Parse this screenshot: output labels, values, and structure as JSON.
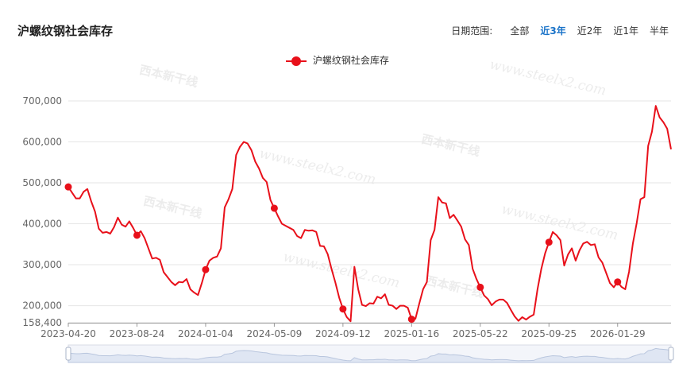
{
  "header": {
    "title": "沪螺纹钢社会库存",
    "range_label": "日期范围:",
    "range_options": [
      "全部",
      "近3年",
      "近2年",
      "近1年",
      "半年"
    ],
    "range_selected": "近3年"
  },
  "watermark": {
    "url": "www.steelx2.com",
    "brand": "西本新干线"
  },
  "colors": {
    "series": "#e8101a",
    "active_option": "#1a73c8",
    "grid": "#e6e6e6"
  },
  "chart_data": {
    "type": "line",
    "title": "",
    "xlabel": "",
    "ylabel": "",
    "legend": {
      "position": "top-center"
    },
    "ylim": [
      158400,
      700000
    ],
    "y_ticks": [
      158400,
      200000,
      300000,
      400000,
      500000,
      600000,
      700000
    ],
    "y_tick_labels": [
      "158,400",
      "200,000",
      "300,000",
      "400,000",
      "500,000",
      "600,000",
      "700,000"
    ],
    "x_tick_labels": [
      "2023-04-20",
      "2023-08-24",
      "2024-01-04",
      "2024-05-09",
      "2024-09-12",
      "2025-01-16",
      "2025-05-22",
      "2025-09-25",
      "2026-01-29"
    ],
    "grid": true,
    "series": [
      {
        "name": "沪螺纹钢社会库存",
        "marker_every": 18,
        "values": [
          490000,
          476000,
          462000,
          462000,
          478000,
          485000,
          455000,
          430000,
          388000,
          378000,
          380000,
          376000,
          392000,
          415000,
          398000,
          393000,
          406000,
          390000,
          372000,
          382000,
          365000,
          340000,
          315000,
          317000,
          312000,
          282000,
          270000,
          258000,
          250000,
          258000,
          257000,
          265000,
          240000,
          232000,
          226000,
          255000,
          288000,
          310000,
          317000,
          320000,
          340000,
          440000,
          460000,
          485000,
          568000,
          588000,
          600000,
          596000,
          580000,
          552000,
          535000,
          512000,
          502000,
          458000,
          438000,
          418000,
          400000,
          395000,
          390000,
          385000,
          370000,
          365000,
          385000,
          383000,
          384000,
          380000,
          346000,
          345000,
          326000,
          290000,
          257000,
          220000,
          192000,
          172000,
          162000,
          295000,
          240000,
          202000,
          199000,
          206000,
          205000,
          222000,
          218000,
          228000,
          202000,
          200000,
          192000,
          200000,
          200000,
          195000,
          167000,
          168000,
          205000,
          240000,
          258000,
          360000,
          385000,
          465000,
          452000,
          450000,
          414000,
          422000,
          408000,
          393000,
          362000,
          348000,
          290000,
          265000,
          245000,
          225000,
          216000,
          201000,
          210000,
          215000,
          215000,
          207000,
          190000,
          174000,
          163000,
          172000,
          166000,
          173000,
          178000,
          240000,
          290000,
          328000,
          355000,
          380000,
          372000,
          360000,
          298000,
          325000,
          340000,
          310000,
          335000,
          352000,
          356000,
          348000,
          350000,
          318000,
          305000,
          280000,
          255000,
          245000,
          258000,
          246000,
          240000,
          283000,
          352000,
          402000,
          460000,
          465000,
          590000,
          625000,
          688000,
          660000,
          648000,
          632000,
          582000
        ]
      }
    ]
  }
}
